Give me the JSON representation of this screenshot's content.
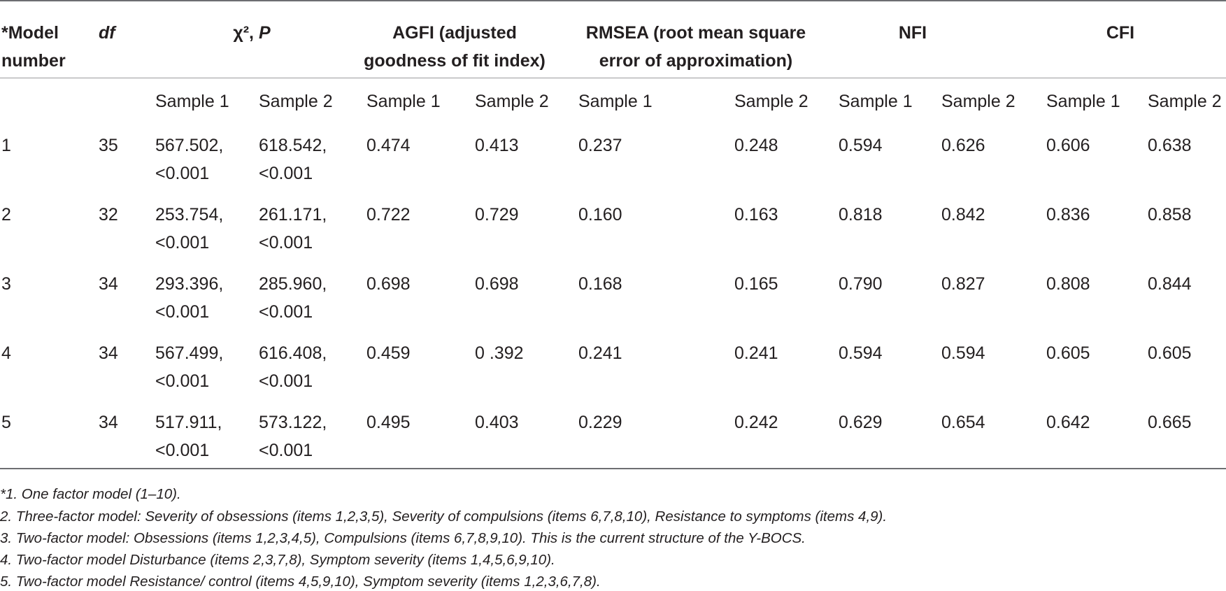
{
  "table": {
    "headers": {
      "model": [
        "*Model",
        "number"
      ],
      "df": "df",
      "chi": {
        "symbol": "χ², ",
        "p": "P"
      },
      "agfi": [
        "AGFI (adjusted",
        "goodness of fit index)"
      ],
      "rmsea": [
        "RMSEA (root mean square",
        "error of approximation)"
      ],
      "nfi": "NFI",
      "cfi": "CFI"
    },
    "sample_labels": [
      "Sample 1",
      "Sample 2",
      "Sample 1",
      "Sample 2",
      "Sample 1",
      "Sample 2",
      "Sample 1",
      "Sample 2",
      "Sample 1",
      "Sample 2"
    ],
    "rows": [
      {
        "model": "1",
        "df": "35",
        "chi1": [
          "567.502,",
          "<0.001"
        ],
        "chi2": [
          "618.542,",
          "<0.001"
        ],
        "agfi1": "0.474",
        "agfi2": "0.413",
        "rmsea1": "0.237",
        "rmsea2": "0.248",
        "nfi1": "0.594",
        "nfi2": "0.626",
        "cfi1": "0.606",
        "cfi2": "0.638"
      },
      {
        "model": "2",
        "df": "32",
        "chi1": [
          "253.754,",
          "<0.001"
        ],
        "chi2": [
          "261.171,",
          "<0.001"
        ],
        "agfi1": "0.722",
        "agfi2": "0.729",
        "rmsea1": "0.160",
        "rmsea2": "0.163",
        "nfi1": "0.818",
        "nfi2": "0.842",
        "cfi1": "0.836",
        "cfi2": "0.858"
      },
      {
        "model": "3",
        "df": "34",
        "chi1": [
          "293.396,",
          "<0.001"
        ],
        "chi2": [
          "285.960,",
          "<0.001"
        ],
        "agfi1": "0.698",
        "agfi2": "0.698",
        "rmsea1": "0.168",
        "rmsea2": "0.165",
        "nfi1": "0.790",
        "nfi2": "0.827",
        "cfi1": "0.808",
        "cfi2": "0.844"
      },
      {
        "model": "4",
        "df": "34",
        "chi1": [
          "567.499,",
          "<0.001"
        ],
        "chi2": [
          "616.408,",
          "<0.001"
        ],
        "agfi1": "0.459",
        "agfi2": "0 .392",
        "rmsea1": "0.241",
        "rmsea2": "0.241",
        "nfi1": "0.594",
        "nfi2": "0.594",
        "cfi1": "0.605",
        "cfi2": "0.605"
      },
      {
        "model": "5",
        "df": "34",
        "chi1": [
          "517.911,",
          "<0.001"
        ],
        "chi2": [
          "573.122,",
          "<0.001"
        ],
        "agfi1": "0.495",
        "agfi2": "0.403",
        "rmsea1": "0.229",
        "rmsea2": "0.242",
        "nfi1": "0.629",
        "nfi2": "0.654",
        "cfi1": "0.642",
        "cfi2": "0.665"
      }
    ]
  },
  "footnotes": [
    "*1. One factor model (1–10).",
    "2. Three-factor model: Severity of obsessions (items 1,2,3,5), Severity of compulsions (items 6,7,8,10), Resistance to symptoms (items 4,9).",
    "3. Two-factor model: Obsessions (items 1,2,3,4,5), Compulsions (items 6,7,8,9,10). This is the current structure of the Y-BOCS.",
    "4. Two-factor model Disturbance (items 2,3,7,8), Symptom severity (items 1,4,5,6,9,10).",
    "5. Two-factor model Resistance/ control (items 4,5,9,10), Symptom severity (items 1,2,3,6,7,8)."
  ]
}
